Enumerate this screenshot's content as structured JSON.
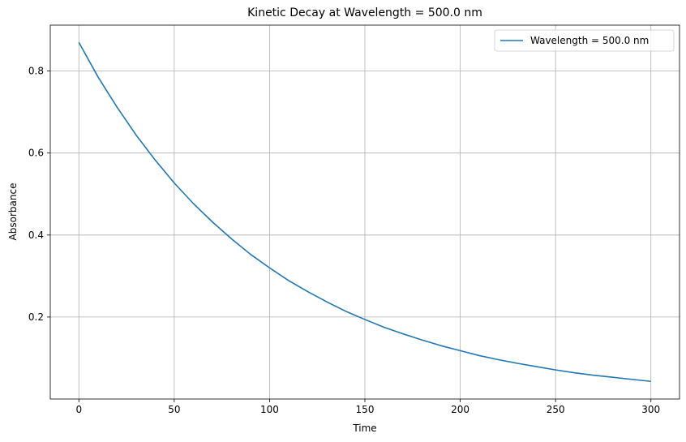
{
  "chart_data": {
    "type": "line",
    "title": "Kinetic Decay at Wavelength = 500.0 nm",
    "xlabel": "Time",
    "ylabel": "Absorbance",
    "xlim": [
      -15,
      315
    ],
    "ylim": [
      0.0,
      0.912
    ],
    "xticks": [
      0,
      50,
      100,
      150,
      200,
      250,
      300
    ],
    "yticks": [
      0.2,
      0.4,
      0.6,
      0.8
    ],
    "ytick_labels": [
      "0.2",
      "0.4",
      "0.6",
      "0.8"
    ],
    "grid": true,
    "legend_position": "top-right",
    "series": [
      {
        "name": "Wavelength = 500.0 nm",
        "color": "#1f77b4",
        "x": [
          0,
          10,
          20,
          30,
          40,
          50,
          60,
          70,
          80,
          90,
          100,
          110,
          120,
          130,
          140,
          150,
          160,
          170,
          180,
          190,
          200,
          210,
          220,
          230,
          240,
          250,
          260,
          270,
          280,
          290,
          300
        ],
        "y": [
          0.87,
          0.786,
          0.712,
          0.644,
          0.583,
          0.527,
          0.477,
          0.432,
          0.391,
          0.353,
          0.32,
          0.289,
          0.262,
          0.237,
          0.214,
          0.194,
          0.175,
          0.159,
          0.144,
          0.13,
          0.118,
          0.106,
          0.096,
          0.087,
          0.079,
          0.071,
          0.064,
          0.058,
          0.053,
          0.048,
          0.043
        ]
      }
    ]
  }
}
